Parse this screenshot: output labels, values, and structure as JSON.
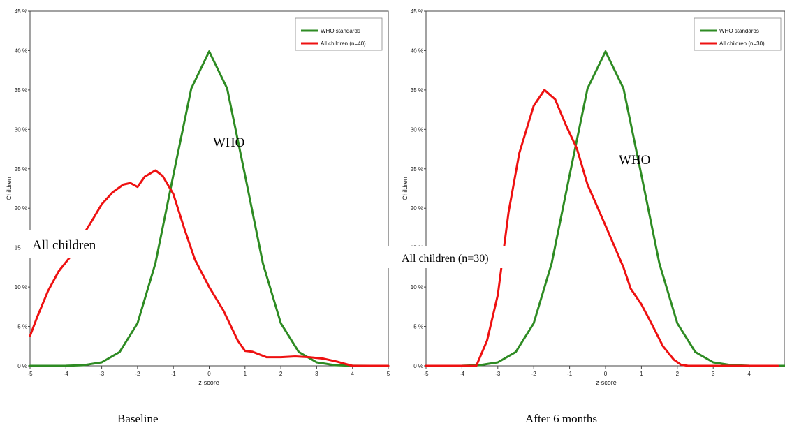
{
  "chart_data": [
    {
      "type": "line",
      "caption": "Baseline",
      "xlabel": "z-score",
      "ylabel": "Children",
      "xlim": [
        -5,
        5
      ],
      "ylim": [
        0,
        45
      ],
      "xticks": [
        "-5",
        "-4",
        "-3",
        "-2",
        "-1",
        "0",
        "1",
        "2",
        "3",
        "4",
        "5"
      ],
      "yticks": [
        "0 %",
        "5 %",
        "10 %",
        "15 %",
        "20 %",
        "25 %",
        "30 %",
        "35 %",
        "40 %",
        "45 %"
      ],
      "grid": false,
      "legend_position": "top-right",
      "legend": [
        "WHO standards",
        "All children (n=40)"
      ],
      "annotations": [
        "WHO",
        "All children"
      ],
      "series": [
        {
          "name": "WHO standards",
          "color": "#2e8b23",
          "x": [
            -5,
            -4.5,
            -4,
            -3.5,
            -3,
            -2.5,
            -2,
            -1.5,
            -1,
            -0.5,
            0,
            0.5,
            1,
            1.5,
            2,
            2.5,
            3,
            3.5,
            4,
            4.5,
            5
          ],
          "y": [
            0,
            0,
            0.01,
            0.09,
            0.44,
            1.75,
            5.4,
            13,
            24.2,
            35.2,
            39.9,
            35.2,
            24.2,
            13,
            5.4,
            1.75,
            0.44,
            0.09,
            0.01,
            0,
            0
          ]
        },
        {
          "name": "All children (n=40)",
          "color": "#ee1111",
          "x": [
            -5,
            -4.8,
            -4.5,
            -4.2,
            -3.9,
            -3.6,
            -3.3,
            -3,
            -2.7,
            -2.4,
            -2.2,
            -2,
            -1.8,
            -1.5,
            -1.3,
            -1,
            -0.7,
            -0.4,
            0,
            0.4,
            0.8,
            1,
            1.2,
            1.6,
            2,
            2.4,
            2.8,
            3.2,
            3.6,
            4,
            4.5,
            5
          ],
          "y": [
            3.8,
            6.2,
            9.5,
            12,
            13.7,
            16,
            18.2,
            20.5,
            22,
            23,
            23.2,
            22.7,
            24,
            24.8,
            24.1,
            21.8,
            17.5,
            13.5,
            10,
            7,
            3.2,
            1.9,
            1.8,
            1.1,
            1.1,
            1.2,
            1.1,
            0.9,
            0.5,
            0,
            0,
            0
          ]
        }
      ]
    },
    {
      "type": "line",
      "caption": "After 6 months",
      "xlabel": "z-score",
      "ylabel": "Children",
      "xlim": [
        -5,
        5
      ],
      "ylim": [
        0,
        45
      ],
      "xticks": [
        "-5",
        "-4",
        "-3",
        "-2",
        "-1",
        "0",
        "1",
        "2",
        "3",
        "4"
      ],
      "yticks": [
        "0 %",
        "5 %",
        "10 %",
        "15 %",
        "20 %",
        "25 %",
        "30 %",
        "35 %",
        "40 %",
        "45 %"
      ],
      "grid": false,
      "legend_position": "top-right",
      "legend": [
        "WHO standards",
        "All children (n=30)"
      ],
      "annotations": [
        "WHO",
        "All children (n=30)"
      ],
      "series": [
        {
          "name": "WHO standards",
          "color": "#2e8b23",
          "x": [
            -5,
            -4.5,
            -4,
            -3.5,
            -3,
            -2.5,
            -2,
            -1.5,
            -1,
            -0.5,
            0,
            0.5,
            1,
            1.5,
            2,
            2.5,
            3,
            3.5,
            4,
            4.5,
            5
          ],
          "y": [
            0,
            0,
            0.01,
            0.09,
            0.44,
            1.75,
            5.4,
            13,
            24.2,
            35.2,
            39.9,
            35.2,
            24.2,
            13,
            5.4,
            1.75,
            0.44,
            0.09,
            0.01,
            0,
            0
          ]
        },
        {
          "name": "All children (n=30)",
          "color": "#ee1111",
          "x": [
            -5,
            -4.5,
            -4,
            -3.6,
            -3.3,
            -3,
            -2.7,
            -2.4,
            -2,
            -1.7,
            -1.4,
            -1.1,
            -0.8,
            -0.5,
            0,
            0.5,
            0.7,
            1,
            1.3,
            1.6,
            1.9,
            2.1,
            2.3,
            2.6,
            3,
            3.5,
            4,
            4.8
          ],
          "y": [
            0,
            0,
            0,
            0,
            3.2,
            9,
            19.5,
            27,
            33,
            35,
            33.8,
            30.5,
            27.6,
            23,
            17.8,
            12.5,
            9.8,
            7.8,
            5.2,
            2.5,
            0.8,
            0.15,
            0,
            0,
            0,
            0,
            0,
            0
          ]
        }
      ]
    }
  ]
}
